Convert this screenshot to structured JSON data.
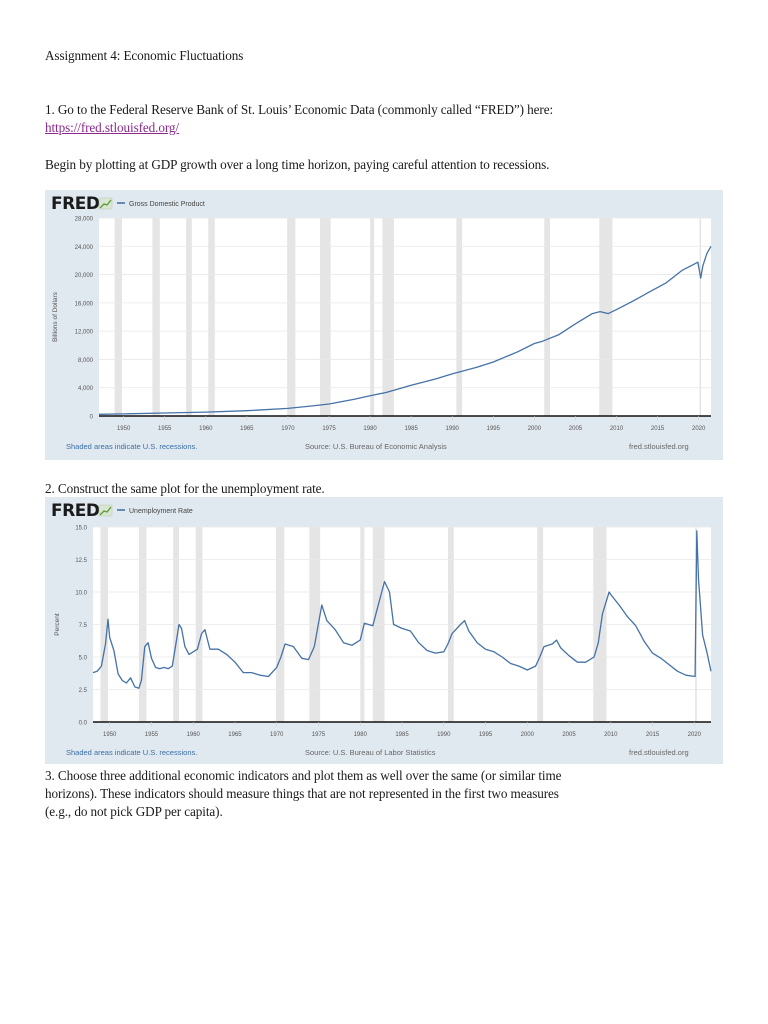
{
  "document": {
    "title": "Assignment 4: Economic Fluctuations",
    "q1_line1": "1. Go to the Federal Reserve Bank of St. Louis’ Economic Data (commonly called “FRED”) here:",
    "q1_link": "https://fred.stlouisfed.org/",
    "q1_line2": "Begin by plotting at GDP growth over a long time horizon, paying careful attention to recessions.",
    "q2": "2. Construct the same plot for the unemployment rate.",
    "q3_lines": [
      "3. Choose three additional economic indicators and plot them as well over the same (or similar time",
      "horizons). These indicators should measure things that are not represented in the first two measures",
      "(e.g., do not pick GDP per capita)."
    ]
  },
  "colors": {
    "chart_bg": "#e1e9f0",
    "plot_bg": "#ffffff",
    "series": "#4572a7",
    "recession": "#e5e5e5",
    "link": "#8b2a8b",
    "note": "#3a6ea5"
  },
  "chart_data": [
    {
      "type": "line",
      "logo": "FRED",
      "logo_icon": "chart-graph-icon",
      "title": "Gross Domestic Product",
      "legend": "Gross Domestic Product",
      "ylabel": "Billions of Dollars",
      "xlabel": "",
      "xlim": [
        1947,
        2021.5
      ],
      "ylim": [
        0,
        28000
      ],
      "yticks": [
        0,
        4000,
        8000,
        12000,
        16000,
        20000,
        24000,
        28000
      ],
      "ytick_labels": [
        "0",
        "4,000",
        "8,000",
        "12,000",
        "16,000",
        "20,000",
        "24,000",
        "28,000"
      ],
      "xticks": [
        1950,
        1955,
        1960,
        1965,
        1970,
        1975,
        1980,
        1985,
        1990,
        1995,
        2000,
        2005,
        2010,
        2015,
        2020
      ],
      "grid": true,
      "recession_note": "Shaded areas indicate U.S. recessions.",
      "source": "Source: U.S. Bureau of Economic Analysis",
      "site": "fred.stlouisfed.org",
      "recessions": [
        [
          1948.9,
          1949.8
        ],
        [
          1953.5,
          1954.4
        ],
        [
          1957.6,
          1958.3
        ],
        [
          1960.3,
          1961.1
        ],
        [
          1969.9,
          1970.9
        ],
        [
          1973.9,
          1975.2
        ],
        [
          1980.0,
          1980.5
        ],
        [
          1981.5,
          1982.9
        ],
        [
          1990.5,
          1991.2
        ],
        [
          2001.2,
          2001.9
        ],
        [
          2007.9,
          2009.5
        ],
        [
          2020.1,
          2020.3
        ]
      ],
      "series": [
        {
          "name": "Gross Domestic Product",
          "x": [
            1947,
            1950,
            1955,
            1960,
            1965,
            1970,
            1973,
            1975,
            1978,
            1980,
            1982,
            1985,
            1988,
            1990,
            1993,
            1995,
            1998,
            2000,
            2001,
            2003,
            2005,
            2007,
            2008,
            2009,
            2010,
            2012,
            2014,
            2016,
            2018,
            2019.9,
            2020.25,
            2020.5,
            2021,
            2021.5
          ],
          "values": [
            245,
            300,
            425,
            545,
            745,
            1075,
            1425,
            1690,
            2350,
            2860,
            3340,
            4340,
            5240,
            5960,
            6880,
            7640,
            9090,
            10250,
            10580,
            11510,
            13040,
            14450,
            14770,
            14480,
            15050,
            16250,
            17550,
            18800,
            20600,
            21750,
            19500,
            21200,
            23000,
            24000
          ]
        }
      ]
    },
    {
      "type": "line",
      "logo": "FRED",
      "logo_icon": "chart-graph-icon",
      "title": "Unemployment Rate",
      "legend": "Unemployment Rate",
      "ylabel": "Percent",
      "xlabel": "",
      "xlim": [
        1948,
        2022
      ],
      "ylim": [
        0,
        15
      ],
      "yticks": [
        0,
        2.5,
        5,
        7.5,
        10,
        12.5,
        15
      ],
      "ytick_labels": [
        "0.0",
        "2.5",
        "5.0",
        "7.5",
        "10.0",
        "12.5",
        "15.0"
      ],
      "xticks": [
        1950,
        1955,
        1960,
        1965,
        1970,
        1975,
        1980,
        1985,
        1990,
        1995,
        2000,
        2005,
        2010,
        2015,
        2020
      ],
      "grid": true,
      "recession_note": "Shaded areas indicate U.S. recessions.",
      "source": "Source: U.S. Bureau of Labor Statistics",
      "site": "fred.stlouisfed.org",
      "recessions": [
        [
          1948.9,
          1949.8
        ],
        [
          1953.5,
          1954.4
        ],
        [
          1957.6,
          1958.3
        ],
        [
          1960.3,
          1961.1
        ],
        [
          1969.9,
          1970.9
        ],
        [
          1973.9,
          1975.2
        ],
        [
          1980.0,
          1980.5
        ],
        [
          1981.5,
          1982.9
        ],
        [
          1990.5,
          1991.2
        ],
        [
          2001.2,
          2001.9
        ],
        [
          2007.9,
          2009.5
        ],
        [
          2020.1,
          2020.3
        ]
      ],
      "series": [
        {
          "name": "Unemployment Rate",
          "x": [
            1948,
            1948.5,
            1949,
            1949.5,
            1949.8,
            1950,
            1950.5,
            1951,
            1951.5,
            1952,
            1952.5,
            1953,
            1953.5,
            1953.8,
            1954.2,
            1954.6,
            1955,
            1955.5,
            1956,
            1956.5,
            1957,
            1957.5,
            1958,
            1958.3,
            1958.6,
            1959,
            1959.5,
            1960,
            1960.5,
            1961,
            1961.4,
            1962,
            1963,
            1964,
            1965,
            1966,
            1967,
            1968,
            1969,
            1970,
            1970.5,
            1971,
            1972,
            1973,
            1973.8,
            1974.5,
            1975.4,
            1976,
            1977,
            1978,
            1979,
            1980,
            1980.5,
            1981,
            1981.5,
            1982,
            1982.9,
            1983.5,
            1984,
            1985,
            1986,
            1987,
            1988,
            1989,
            1990,
            1990.5,
            1991,
            1992,
            1992.5,
            1993,
            1994,
            1995,
            1996,
            1997,
            1998,
            1999,
            2000,
            2001,
            2001.5,
            2002,
            2003,
            2003.5,
            2004,
            2005,
            2006,
            2007,
            2008,
            2008.5,
            2009,
            2009.8,
            2010,
            2011,
            2012,
            2013,
            2014,
            2015,
            2016,
            2017,
            2018,
            2019,
            2020.1,
            2020.3,
            2020.5,
            2021,
            2021.5,
            2022
          ],
          "values": [
            3.8,
            3.9,
            4.3,
            6.0,
            7.9,
            6.5,
            5.5,
            3.7,
            3.2,
            3.0,
            3.4,
            2.7,
            2.6,
            3.2,
            5.8,
            6.1,
            4.9,
            4.2,
            4.1,
            4.2,
            4.1,
            4.3,
            6.3,
            7.5,
            7.2,
            5.8,
            5.2,
            5.4,
            5.6,
            6.8,
            7.1,
            5.6,
            5.6,
            5.2,
            4.6,
            3.8,
            3.8,
            3.6,
            3.5,
            4.2,
            5.0,
            6.0,
            5.8,
            4.9,
            4.8,
            5.8,
            9.0,
            7.8,
            7.1,
            6.1,
            5.9,
            6.3,
            7.6,
            7.5,
            7.4,
            8.6,
            10.8,
            10.0,
            7.5,
            7.2,
            7.0,
            6.1,
            5.5,
            5.3,
            5.4,
            6.0,
            6.8,
            7.5,
            7.8,
            7.0,
            6.1,
            5.6,
            5.4,
            5.0,
            4.5,
            4.3,
            4.0,
            4.3,
            5.0,
            5.8,
            6.0,
            6.3,
            5.7,
            5.1,
            4.6,
            4.6,
            5.0,
            6.1,
            8.3,
            10.0,
            9.8,
            9.0,
            8.1,
            7.4,
            6.2,
            5.3,
            4.9,
            4.4,
            3.9,
            3.6,
            3.5,
            14.7,
            11.0,
            6.7,
            5.4,
            3.9
          ]
        }
      ]
    }
  ]
}
